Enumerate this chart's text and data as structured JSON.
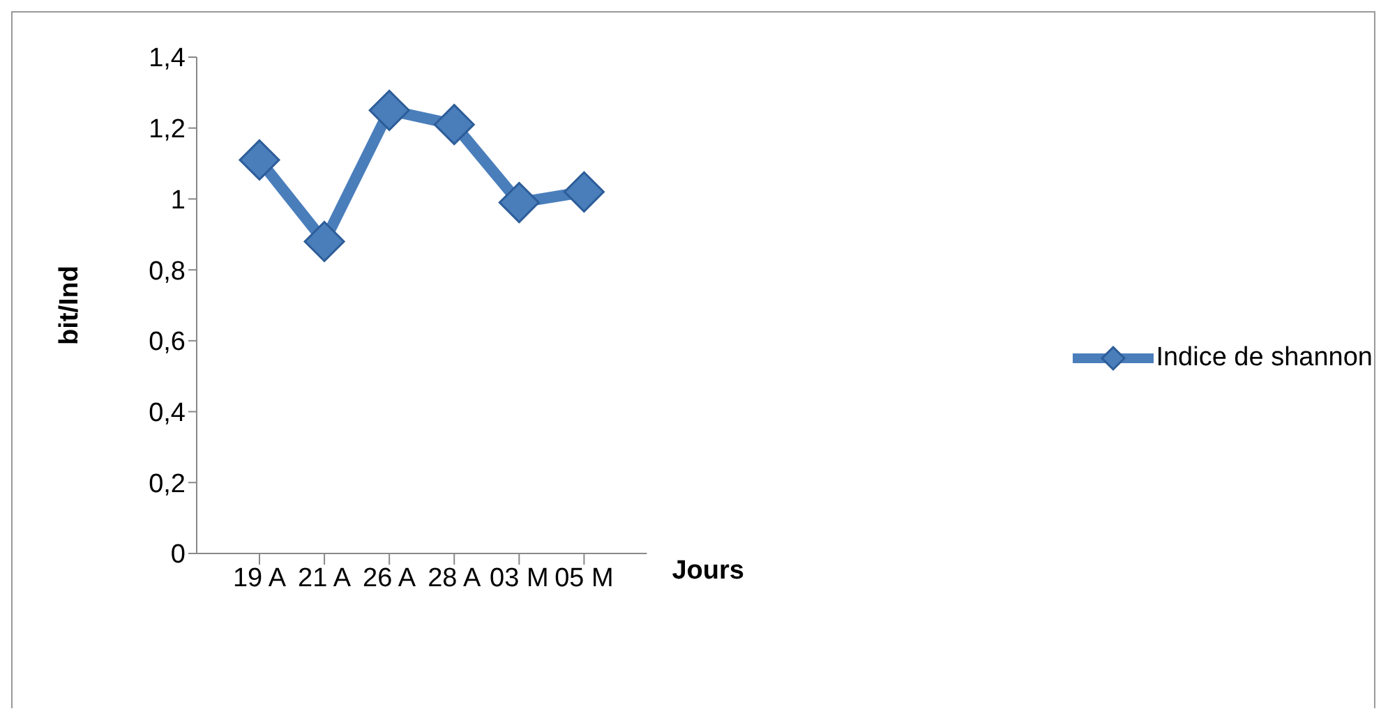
{
  "chart_data": {
    "type": "line",
    "xlabel": "Jours",
    "ylabel": "bit/Ind",
    "categories": [
      "19 A",
      "21 A",
      "26 A",
      "28 A",
      "03 M",
      "05 M"
    ],
    "series": [
      {
        "name": "Indice de shannon",
        "color": "#4a7ebb",
        "values": [
          1.11,
          0.88,
          1.25,
          1.21,
          0.99,
          1.02
        ]
      }
    ],
    "ylim": [
      0,
      1.4
    ],
    "yticks": [
      {
        "value": 0,
        "label": "0"
      },
      {
        "value": 0.2,
        "label": "0,2"
      },
      {
        "value": 0.4,
        "label": "0,4"
      },
      {
        "value": 0.6,
        "label": "0,6"
      },
      {
        "value": 0.8,
        "label": "0,8"
      },
      {
        "value": 1,
        "label": "1"
      },
      {
        "value": 1.2,
        "label": "1,2"
      },
      {
        "value": 1.4,
        "label": "1,4"
      }
    ],
    "grid": false,
    "legend": "right",
    "marker": "diamond",
    "line_style": "solid"
  }
}
